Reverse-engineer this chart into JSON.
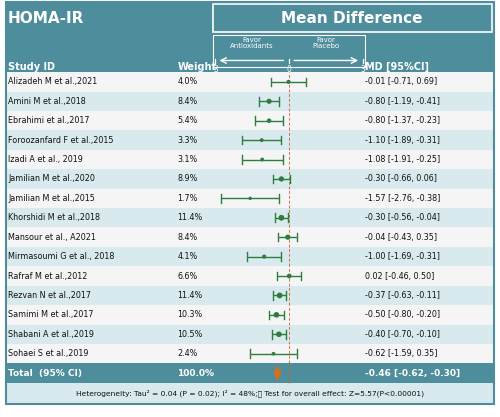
{
  "studies": [
    {
      "id": "Alizadeh M et al.,2021",
      "weight": "4.0%",
      "md": -0.01,
      "ci_low": -0.71,
      "ci_high": 0.69,
      "md_str": "-0.01 [-0.71, 0.69]"
    },
    {
      "id": "Amini M et al.,2018",
      "weight": "8.4%",
      "md": -0.8,
      "ci_low": -1.19,
      "ci_high": -0.41,
      "md_str": "-0.80 [-1.19, -0.41]"
    },
    {
      "id": "Ebrahimi et al.,2017",
      "weight": "5.4%",
      "md": -0.8,
      "ci_low": -1.37,
      "ci_high": -0.23,
      "md_str": "-0.80 [-1.37, -0.23]"
    },
    {
      "id": "Foroozanfard F et al.,2015",
      "weight": "3.3%",
      "md": -1.1,
      "ci_low": -1.89,
      "ci_high": -0.31,
      "md_str": "-1.10 [-1.89, -0.31]"
    },
    {
      "id": "Izadi A et al., 2019",
      "weight": "3.1%",
      "md": -1.08,
      "ci_low": -1.91,
      "ci_high": -0.25,
      "md_str": "-1.08 [-1.91, -0.25]"
    },
    {
      "id": "Jamilian M et al.,2020",
      "weight": "8.9%",
      "md": -0.3,
      "ci_low": -0.66,
      "ci_high": 0.06,
      "md_str": "-0.30 [-0.66, 0.06]"
    },
    {
      "id": "Jamilian M et al.,2015",
      "weight": "1.7%",
      "md": -1.57,
      "ci_low": -2.76,
      "ci_high": -0.38,
      "md_str": "-1.57 [-2.76, -0.38]"
    },
    {
      "id": "Khorshidi M et al.,2018",
      "weight": "11.4%",
      "md": -0.3,
      "ci_low": -0.56,
      "ci_high": -0.04,
      "md_str": "-0.30 [-0.56, -0.04]"
    },
    {
      "id": "Mansour et al., A2021",
      "weight": "8.4%",
      "md": -0.04,
      "ci_low": -0.43,
      "ci_high": 0.35,
      "md_str": "-0.04 [-0.43, 0.35]"
    },
    {
      "id": "Mirmasoumi G et al., 2018",
      "weight": "4.1%",
      "md": -1.0,
      "ci_low": -1.69,
      "ci_high": -0.31,
      "md_str": "-1.00 [-1.69, -0.31]"
    },
    {
      "id": "Rafraf M et al.,2012",
      "weight": "6.6%",
      "md": 0.02,
      "ci_low": -0.46,
      "ci_high": 0.5,
      "md_str": "0.02 [-0.46, 0.50]"
    },
    {
      "id": "Rezvan N et al.,2017",
      "weight": "11.4%",
      "md": -0.37,
      "ci_low": -0.63,
      "ci_high": -0.11,
      "md_str": "-0.37 [-0.63, -0.11]"
    },
    {
      "id": "Samimi M et al.,2017",
      "weight": "10.3%",
      "md": -0.5,
      "ci_low": -0.8,
      "ci_high": -0.2,
      "md_str": "-0.50 [-0.80, -0.20]"
    },
    {
      "id": "Shabani A et al.,2019",
      "weight": "10.5%",
      "md": -0.4,
      "ci_low": -0.7,
      "ci_high": -0.1,
      "md_str": "-0.40 [-0.70, -0.10]"
    },
    {
      "id": "Sohaei S et al.,2019",
      "weight": "2.4%",
      "md": -0.62,
      "ci_low": -1.59,
      "ci_high": 0.35,
      "md_str": "-0.62 [-1.59, 0.35]"
    }
  ],
  "total": {
    "md": -0.46,
    "ci_low": -0.62,
    "ci_high": -0.3,
    "md_str": "-0.46 [-0.62, -0.30]",
    "weight": "100.0%"
  },
  "title_left": "HOMA-IR",
  "title_right": "Mean Difference",
  "col_study": "Study ID",
  "col_weight": "Weight",
  "col_md": "MD [95%CI]",
  "favor_left": "Favor\nAntioxidants",
  "favor_right": "Favor\nPlacebo",
  "footer": "Heterogeneity: Tau² = 0.04 (P = 0.02); I² = 48%;　 Test for overall effect: Z=5.57(P<0.00001)",
  "bg_header": "#4e8d9c",
  "bg_alt1": "#f5f5f5",
  "bg_alt2": "#d8eaee",
  "bg_total": "#4e8d9c",
  "bg_footer": "#d8eaee",
  "ci_color": "#2e7d3e",
  "dot_color": "#2e7d3e",
  "diamond_color": "#d4701a",
  "vline_color": "#c8602a",
  "header_text_color": "#ffffff",
  "body_text_color": "#111111",
  "total_text_color": "#ffffff",
  "footer_text_color": "#111111",
  "border_color": "#4e8d9c",
  "box_color": "#aacccc"
}
